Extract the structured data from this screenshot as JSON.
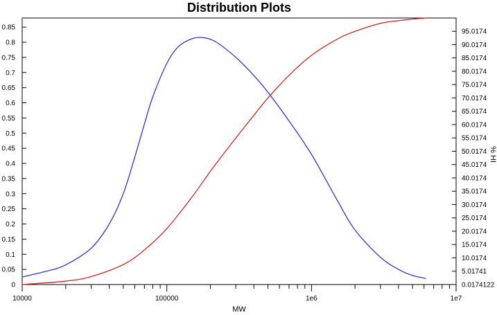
{
  "chart_data": {
    "type": "line",
    "title": "Distribution Plots",
    "xlabel": "MW",
    "ylabel_left": "",
    "ylabel_right": "% HI",
    "x_scale": "log",
    "xlim": [
      10000,
      10000000
    ],
    "ylim_left": [
      0,
      0.88
    ],
    "ylim_right": [
      0.0174122,
      100
    ],
    "x_tick_labels": [
      "10000",
      "100000",
      "1e6",
      "1e7"
    ],
    "x_tick_values": [
      10000,
      100000,
      1000000,
      10000000
    ],
    "y_left_ticks": [
      "0",
      "0.05",
      "0.1",
      "0.15",
      "0.2",
      "0.25",
      "0.3",
      "0.35",
      "0.4",
      "0.45",
      "0.5",
      "0.55",
      "0.6",
      "0.65",
      "0.7",
      "0.75",
      "0.8",
      "0.85"
    ],
    "y_right_ticks": [
      "0.0174122",
      "5.01741",
      "10.0174",
      "15.0174",
      "20.0174",
      "25.0174",
      "30.0174",
      "35.0174",
      "40.0174",
      "45.0174",
      "50.0174",
      "55.0174",
      "60.0174",
      "65.0174",
      "70.0174",
      "75.0174",
      "80.0174",
      "85.0174",
      "90.0174",
      "95.0174"
    ],
    "grid": false,
    "series": [
      {
        "color": "#3333cc",
        "axis": "left",
        "x": [
          10000,
          15000,
          20000,
          30000,
          40000,
          50000,
          60000,
          70000,
          80000,
          100000,
          120000,
          150000,
          180000,
          220000,
          300000,
          400000,
          500000,
          700000,
          1000000,
          1500000,
          2000000,
          3000000,
          4000000,
          5000000,
          6200000
        ],
        "y": [
          0.025,
          0.045,
          0.065,
          0.12,
          0.2,
          0.3,
          0.42,
          0.53,
          0.62,
          0.73,
          0.785,
          0.812,
          0.815,
          0.8,
          0.75,
          0.69,
          0.635,
          0.54,
          0.43,
          0.28,
          0.18,
          0.09,
          0.05,
          0.03,
          0.02
        ]
      },
      {
        "color": "#cc2222",
        "axis": "right",
        "x": [
          10000,
          20000,
          30000,
          50000,
          70000,
          100000,
          150000,
          200000,
          300000,
          400000,
          500000,
          700000,
          1000000,
          1500000,
          2000000,
          3000000,
          4000000,
          5000000,
          6200000
        ],
        "y": [
          0.0174122,
          1.3,
          3.0,
          7.5,
          13.0,
          21.0,
          33.0,
          42.5,
          55.0,
          63.5,
          70.0,
          78.5,
          86.0,
          92.0,
          95.0,
          98.0,
          99.0,
          99.6,
          100
        ]
      }
    ]
  }
}
